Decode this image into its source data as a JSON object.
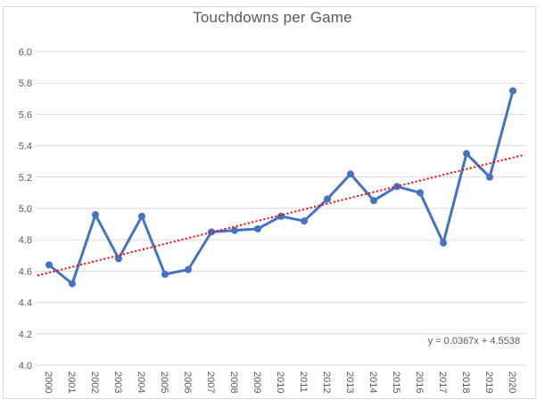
{
  "chart_data": {
    "type": "line",
    "title": "Touchdowns per Game",
    "xlabel": "",
    "ylabel": "",
    "categories": [
      "2000",
      "2001",
      "2002",
      "2003",
      "2004",
      "2005",
      "2006",
      "2007",
      "2008",
      "2009",
      "2010",
      "2011",
      "2012",
      "2013",
      "2014",
      "2015",
      "2016",
      "2017",
      "2018",
      "2019",
      "2020"
    ],
    "series": [
      {
        "name": "Touchdowns per Game",
        "values": [
          4.64,
          4.52,
          4.96,
          4.68,
          4.95,
          4.58,
          4.61,
          4.85,
          4.86,
          4.87,
          4.95,
          4.92,
          5.06,
          5.22,
          5.05,
          5.14,
          5.1,
          4.78,
          5.35,
          5.2,
          5.75
        ]
      }
    ],
    "ylim": [
      4.0,
      6.0
    ],
    "ytick_step": 0.2,
    "ytick_labels": [
      "4.0",
      "4.2",
      "4.4",
      "4.6",
      "4.8",
      "5.0",
      "5.2",
      "5.4",
      "5.6",
      "5.8",
      "6.0"
    ],
    "grid": "horizontal",
    "legend": "none",
    "marker": "circle",
    "trendline": {
      "type": "linear",
      "slope": 0.0367,
      "intercept": 4.5538,
      "equation_label": "y = 0.0367x + 4.5538",
      "style": "dotted"
    },
    "colors": {
      "series": "#4472C4",
      "trendline": "#FF0000",
      "gridline": "#D9D9D9",
      "text": "#595959",
      "border": "#D9D9D9",
      "background": "#FFFFFF"
    }
  }
}
